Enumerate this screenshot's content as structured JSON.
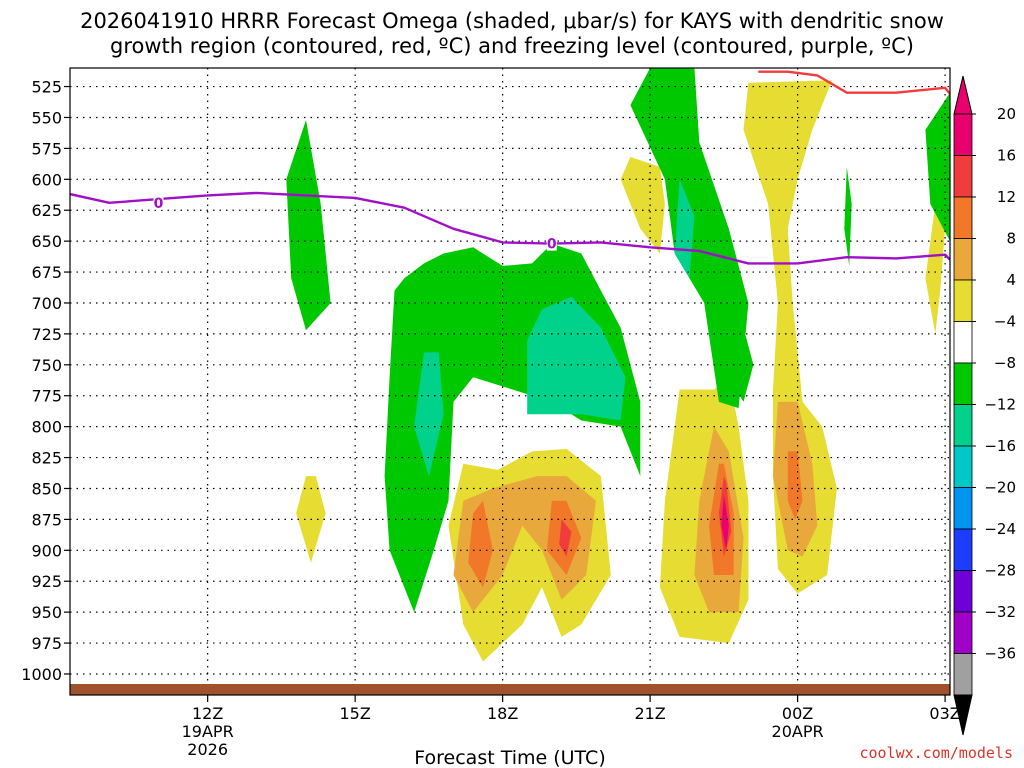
{
  "chart_data": {
    "type": "heatmap",
    "title_line1": "2026041910 HRRR Forecast Omega (shaded, μbar/s) for KAYS with dendritic snow",
    "title_line2": "growth region (contoured, red, ºC) and freezing level (contoured, purple, ºC)",
    "xlabel": "Forecast Time (UTC)",
    "x_range_hours": [
      9.2,
      27.1
    ],
    "y_range_mb": [
      510,
      1017
    ],
    "y_ticks": [
      "525",
      "550",
      "575",
      "600",
      "625",
      "650",
      "675",
      "700",
      "725",
      "750",
      "775",
      "800",
      "825",
      "850",
      "875",
      "900",
      "925",
      "950",
      "975",
      "1000"
    ],
    "x_ticks": [
      {
        "hour": 12,
        "label": "12Z",
        "sub1": "19APR",
        "sub2": "2026"
      },
      {
        "hour": 15,
        "label": "15Z",
        "sub1": "",
        "sub2": ""
      },
      {
        "hour": 18,
        "label": "18Z",
        "sub1": "",
        "sub2": ""
      },
      {
        "hour": 21,
        "label": "21Z",
        "sub1": "",
        "sub2": ""
      },
      {
        "hour": 24,
        "label": "00Z",
        "sub1": "20APR",
        "sub2": ""
      },
      {
        "hour": 27,
        "label": "03Z",
        "sub1": "",
        "sub2": ""
      }
    ],
    "colorbar": {
      "labels": [
        "20",
        "16",
        "12",
        "8",
        "4",
        "−4",
        "−8",
        "−12",
        "−16",
        "−20",
        "−24",
        "−28",
        "−32",
        "−36"
      ],
      "colors": [
        "#e8006e",
        "#f03c3c",
        "#f07828",
        "#e8a83c",
        "#e6dc32",
        "#ffffff",
        "#00c800",
        "#00d28c",
        "#00c8c8",
        "#0096f0",
        "#1e3cff",
        "#6e00dc",
        "#a000c8",
        "#a0a0a0"
      ]
    },
    "freezing_level": {
      "label": "0",
      "color": "#a010c8",
      "points": [
        [
          9.2,
          612
        ],
        [
          10.0,
          619
        ],
        [
          11.0,
          616
        ],
        [
          12.0,
          613
        ],
        [
          13.0,
          611
        ],
        [
          14.0,
          613
        ],
        [
          15.0,
          615
        ],
        [
          16.0,
          623
        ],
        [
          17.0,
          640
        ],
        [
          18.0,
          651
        ],
        [
          19.0,
          652
        ],
        [
          20.0,
          651
        ],
        [
          21.0,
          655
        ],
        [
          22.0,
          658
        ],
        [
          23.0,
          668
        ],
        [
          24.0,
          668
        ],
        [
          25.0,
          663
        ],
        [
          26.0,
          664
        ],
        [
          27.0,
          661
        ],
        [
          27.1,
          665
        ]
      ]
    },
    "dendritic_region_top": {
      "label": "",
      "color": "#f03c3c",
      "points": [
        [
          23.2,
          513
        ],
        [
          23.8,
          513
        ],
        [
          24.4,
          516
        ],
        [
          25.0,
          530
        ],
        [
          26.0,
          530
        ],
        [
          27.0,
          526
        ],
        [
          27.1,
          531
        ]
      ]
    },
    "surface_color": "#a0522d",
    "omega_areas": [
      {
        "value": 4,
        "points": [
          [
            23.0,
            522
          ],
          [
            22.9,
            560
          ],
          [
            23.4,
            620
          ],
          [
            23.6,
            700
          ],
          [
            23.5,
            770
          ],
          [
            23.5,
            840
          ],
          [
            23.6,
            915
          ],
          [
            24.0,
            935
          ],
          [
            24.6,
            920
          ],
          [
            24.8,
            850
          ],
          [
            24.5,
            800
          ],
          [
            24.1,
            780
          ],
          [
            23.9,
            700
          ],
          [
            23.8,
            640
          ],
          [
            24.0,
            600
          ],
          [
            24.3,
            560
          ],
          [
            24.7,
            520
          ]
        ]
      },
      {
        "value": 8,
        "points": [
          [
            23.6,
            780
          ],
          [
            23.5,
            840
          ],
          [
            23.8,
            900
          ],
          [
            24.1,
            905
          ],
          [
            24.4,
            880
          ],
          [
            24.3,
            830
          ],
          [
            24.0,
            780
          ]
        ]
      },
      {
        "value": 12,
        "points": [
          [
            23.8,
            820
          ],
          [
            23.8,
            860
          ],
          [
            23.95,
            875
          ],
          [
            24.1,
            860
          ],
          [
            24.0,
            820
          ]
        ]
      },
      {
        "value": 4,
        "points": [
          [
            21.6,
            770
          ],
          [
            21.3,
            860
          ],
          [
            21.2,
            930
          ],
          [
            21.6,
            970
          ],
          [
            22.6,
            975
          ],
          [
            23.0,
            940
          ],
          [
            23.0,
            860
          ],
          [
            22.8,
            800
          ],
          [
            22.6,
            760
          ],
          [
            22.3,
            770
          ]
        ]
      },
      {
        "value": 8,
        "points": [
          [
            22.3,
            800
          ],
          [
            22.0,
            860
          ],
          [
            21.9,
            920
          ],
          [
            22.2,
            950
          ],
          [
            22.8,
            950
          ],
          [
            22.9,
            890
          ],
          [
            22.6,
            820
          ]
        ]
      },
      {
        "value": 12,
        "points": [
          [
            22.4,
            830
          ],
          [
            22.2,
            880
          ],
          [
            22.3,
            920
          ],
          [
            22.7,
            920
          ],
          [
            22.7,
            870
          ],
          [
            22.5,
            830
          ]
        ]
      },
      {
        "value": 16,
        "points": [
          [
            22.5,
            840
          ],
          [
            22.4,
            870
          ],
          [
            22.5,
            905
          ],
          [
            22.65,
            885
          ],
          [
            22.55,
            845
          ]
        ]
      },
      {
        "value": 20,
        "points": [
          [
            22.5,
            855
          ],
          [
            22.45,
            880
          ],
          [
            22.55,
            900
          ],
          [
            22.6,
            880
          ]
        ]
      },
      {
        "value": 4,
        "points": [
          [
            17.2,
            830
          ],
          [
            16.9,
            880
          ],
          [
            17.2,
            960
          ],
          [
            17.6,
            990
          ],
          [
            18.4,
            960
          ],
          [
            18.8,
            930
          ],
          [
            19.2,
            970
          ],
          [
            19.6,
            960
          ],
          [
            20.2,
            920
          ],
          [
            20.0,
            840
          ],
          [
            19.3,
            818
          ],
          [
            18.6,
            820
          ],
          [
            17.9,
            835
          ]
        ]
      },
      {
        "value": 8,
        "points": [
          [
            17.2,
            860
          ],
          [
            17.0,
            920
          ],
          [
            17.4,
            950
          ],
          [
            18.0,
            920
          ],
          [
            18.4,
            880
          ],
          [
            18.8,
            900
          ],
          [
            19.2,
            940
          ],
          [
            19.7,
            920
          ],
          [
            19.9,
            860
          ],
          [
            19.3,
            840
          ],
          [
            18.7,
            840
          ],
          [
            17.8,
            850
          ]
        ]
      },
      {
        "value": 12,
        "points": [
          [
            17.4,
            870
          ],
          [
            17.3,
            910
          ],
          [
            17.6,
            930
          ],
          [
            17.8,
            900
          ],
          [
            17.6,
            860
          ]
        ]
      },
      {
        "value": 12,
        "points": [
          [
            19.0,
            860
          ],
          [
            18.9,
            900
          ],
          [
            19.3,
            920
          ],
          [
            19.6,
            890
          ],
          [
            19.3,
            860
          ]
        ]
      },
      {
        "value": 16,
        "points": [
          [
            19.2,
            875
          ],
          [
            19.15,
            895
          ],
          [
            19.3,
            905
          ],
          [
            19.4,
            885
          ]
        ]
      },
      {
        "value": 4,
        "points": [
          [
            20.6,
            582
          ],
          [
            20.4,
            600
          ],
          [
            20.8,
            640
          ],
          [
            21.2,
            660
          ],
          [
            21.3,
            620
          ],
          [
            21.2,
            590
          ]
        ]
      },
      {
        "value": 4,
        "points": [
          [
            14.0,
            840
          ],
          [
            13.8,
            870
          ],
          [
            14.1,
            910
          ],
          [
            14.4,
            870
          ],
          [
            14.2,
            840
          ]
        ]
      },
      {
        "value": 4,
        "points": [
          [
            26.8,
            620
          ],
          [
            26.6,
            680
          ],
          [
            26.8,
            725
          ],
          [
            26.9,
            690
          ],
          [
            27.0,
            640
          ]
        ]
      },
      {
        "value": -4,
        "points": [
          [
            14.0,
            552
          ],
          [
            13.6,
            600
          ],
          [
            13.7,
            680
          ],
          [
            14.0,
            722
          ],
          [
            14.5,
            700
          ],
          [
            14.3,
            620
          ],
          [
            14.0,
            552
          ]
        ]
      },
      {
        "value": -4,
        "points": [
          [
            15.8,
            690
          ],
          [
            15.7,
            760
          ],
          [
            15.6,
            840
          ],
          [
            15.7,
            900
          ],
          [
            16.2,
            950
          ],
          [
            16.6,
            900
          ],
          [
            16.9,
            860
          ],
          [
            17.0,
            780
          ],
          [
            17.4,
            760
          ],
          [
            18.2,
            770
          ],
          [
            19.0,
            780
          ],
          [
            19.6,
            795
          ],
          [
            20.4,
            800
          ],
          [
            20.8,
            840
          ],
          [
            20.8,
            780
          ],
          [
            20.4,
            720
          ],
          [
            20.0,
            690
          ],
          [
            19.6,
            660
          ],
          [
            19.0,
            652
          ],
          [
            18.6,
            668
          ],
          [
            18.0,
            670
          ],
          [
            17.4,
            655
          ],
          [
            16.8,
            660
          ],
          [
            16.4,
            668
          ],
          [
            16.0,
            680
          ]
        ]
      },
      {
        "value": -8,
        "points": [
          [
            16.4,
            740
          ],
          [
            16.2,
            800
          ],
          [
            16.5,
            840
          ],
          [
            16.8,
            790
          ],
          [
            16.7,
            740
          ]
        ]
      },
      {
        "value": -8,
        "points": [
          [
            18.5,
            730
          ],
          [
            18.5,
            790
          ],
          [
            19.6,
            790
          ],
          [
            20.4,
            795
          ],
          [
            20.5,
            760
          ],
          [
            20.0,
            720
          ],
          [
            19.4,
            695
          ],
          [
            18.8,
            705
          ]
        ]
      },
      {
        "value": -4,
        "points": [
          [
            21.0,
            510
          ],
          [
            20.6,
            540
          ],
          [
            21.3,
            600
          ],
          [
            21.5,
            660
          ],
          [
            22.1,
            700
          ],
          [
            22.4,
            780
          ],
          [
            22.8,
            785
          ],
          [
            23.0,
            700
          ],
          [
            22.6,
            640
          ],
          [
            22.0,
            570
          ],
          [
            21.9,
            510
          ]
        ]
      },
      {
        "value": -8,
        "points": [
          [
            21.6,
            600
          ],
          [
            21.5,
            660
          ],
          [
            21.8,
            680
          ],
          [
            21.9,
            630
          ]
        ]
      },
      {
        "value": -4,
        "points": [
          [
            22.8,
            720
          ],
          [
            22.6,
            760
          ],
          [
            22.9,
            780
          ],
          [
            23.1,
            750
          ],
          [
            22.9,
            720
          ]
        ]
      },
      {
        "value": -4,
        "points": [
          [
            27.1,
            530
          ],
          [
            26.6,
            560
          ],
          [
            26.7,
            620
          ],
          [
            27.1,
            650
          ]
        ]
      },
      {
        "value": -4,
        "points": [
          [
            25.0,
            590
          ],
          [
            24.95,
            640
          ],
          [
            25.05,
            670
          ],
          [
            25.1,
            620
          ]
        ]
      }
    ]
  }
}
